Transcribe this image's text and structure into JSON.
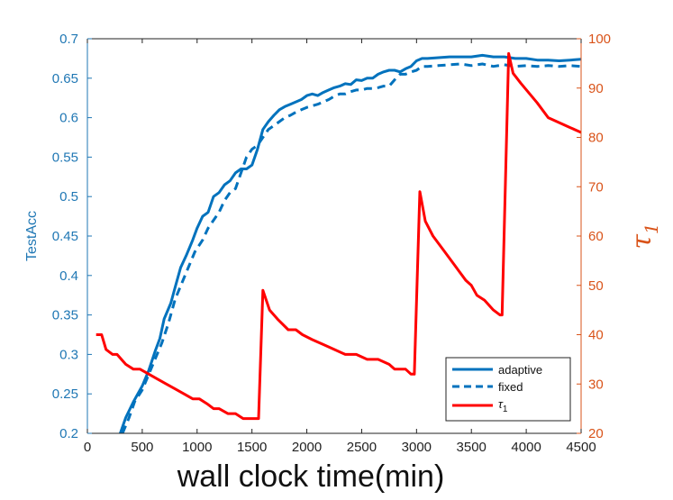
{
  "chart_data": {
    "type": "line",
    "xlabel": "wall clock time(min)",
    "ylabel": "TestAcc",
    "y2label": "τ",
    "y2label_sub": "1",
    "xlim": [
      0,
      4500
    ],
    "ylim": [
      0.2,
      0.7
    ],
    "y2lim": [
      20,
      100
    ],
    "xticks": [
      0,
      500,
      1000,
      1500,
      2000,
      2500,
      3000,
      3500,
      4000,
      4500
    ],
    "yticks": [
      "0.2",
      "0.25",
      "0.3",
      "0.35",
      "0.4",
      "0.45",
      "0.5",
      "0.55",
      "0.6",
      "0.65",
      "0.7"
    ],
    "y2ticks": [
      "20",
      "30",
      "40",
      "50",
      "60",
      "70",
      "80",
      "90",
      "100"
    ],
    "colors": {
      "left_axis": "#1f77b4",
      "right_axis": "#d95319",
      "accuracy": "#0072bd",
      "tau": "#ff0000"
    },
    "legend": {
      "position": "bottom-right",
      "entries": [
        {
          "label": "adaptive",
          "style": "solid",
          "color": "#0072bd"
        },
        {
          "label": "fixed",
          "style": "dashed",
          "color": "#0072bd"
        },
        {
          "label": "τ",
          "sub": "1",
          "style": "solid",
          "color": "#ff0000"
        }
      ]
    },
    "series": [
      {
        "name": "adaptive",
        "axis": "left",
        "style": "solid",
        "points": [
          [
            300,
            0.2
          ],
          [
            350,
            0.22
          ],
          [
            420,
            0.24
          ],
          [
            500,
            0.26
          ],
          [
            560,
            0.28
          ],
          [
            620,
            0.305
          ],
          [
            660,
            0.32
          ],
          [
            700,
            0.345
          ],
          [
            760,
            0.365
          ],
          [
            800,
            0.385
          ],
          [
            850,
            0.41
          ],
          [
            900,
            0.425
          ],
          [
            960,
            0.445
          ],
          [
            1000,
            0.46
          ],
          [
            1050,
            0.475
          ],
          [
            1100,
            0.48
          ],
          [
            1150,
            0.5
          ],
          [
            1200,
            0.505
          ],
          [
            1250,
            0.515
          ],
          [
            1300,
            0.52
          ],
          [
            1350,
            0.53
          ],
          [
            1400,
            0.535
          ],
          [
            1450,
            0.535
          ],
          [
            1500,
            0.54
          ],
          [
            1550,
            0.56
          ],
          [
            1600,
            0.585
          ],
          [
            1650,
            0.595
          ],
          [
            1700,
            0.603
          ],
          [
            1750,
            0.61
          ],
          [
            1800,
            0.614
          ],
          [
            1850,
            0.617
          ],
          [
            1900,
            0.62
          ],
          [
            1950,
            0.623
          ],
          [
            2000,
            0.628
          ],
          [
            2050,
            0.63
          ],
          [
            2100,
            0.628
          ],
          [
            2150,
            0.632
          ],
          [
            2200,
            0.635
          ],
          [
            2250,
            0.638
          ],
          [
            2300,
            0.64
          ],
          [
            2350,
            0.643
          ],
          [
            2400,
            0.642
          ],
          [
            2450,
            0.648
          ],
          [
            2500,
            0.647
          ],
          [
            2550,
            0.65
          ],
          [
            2600,
            0.65
          ],
          [
            2650,
            0.655
          ],
          [
            2700,
            0.658
          ],
          [
            2750,
            0.66
          ],
          [
            2800,
            0.66
          ],
          [
            2850,
            0.658
          ],
          [
            2900,
            0.662
          ],
          [
            2950,
            0.665
          ],
          [
            3000,
            0.672
          ],
          [
            3050,
            0.675
          ],
          [
            3100,
            0.675
          ],
          [
            3200,
            0.676
          ],
          [
            3300,
            0.677
          ],
          [
            3400,
            0.677
          ],
          [
            3500,
            0.677
          ],
          [
            3600,
            0.679
          ],
          [
            3700,
            0.677
          ],
          [
            3800,
            0.677
          ],
          [
            3900,
            0.675
          ],
          [
            4000,
            0.675
          ],
          [
            4100,
            0.673
          ],
          [
            4200,
            0.673
          ],
          [
            4300,
            0.672
          ],
          [
            4400,
            0.673
          ],
          [
            4500,
            0.674
          ]
        ]
      },
      {
        "name": "fixed",
        "axis": "left",
        "style": "dashed",
        "points": [
          [
            320,
            0.2
          ],
          [
            380,
            0.22
          ],
          [
            430,
            0.24
          ],
          [
            500,
            0.255
          ],
          [
            560,
            0.275
          ],
          [
            620,
            0.295
          ],
          [
            680,
            0.315
          ],
          [
            740,
            0.34
          ],
          [
            800,
            0.37
          ],
          [
            860,
            0.39
          ],
          [
            920,
            0.41
          ],
          [
            980,
            0.43
          ],
          [
            1050,
            0.445
          ],
          [
            1100,
            0.46
          ],
          [
            1150,
            0.47
          ],
          [
            1200,
            0.48
          ],
          [
            1250,
            0.495
          ],
          [
            1300,
            0.505
          ],
          [
            1350,
            0.51
          ],
          [
            1400,
            0.53
          ],
          [
            1450,
            0.55
          ],
          [
            1500,
            0.56
          ],
          [
            1550,
            0.565
          ],
          [
            1600,
            0.575
          ],
          [
            1650,
            0.585
          ],
          [
            1700,
            0.59
          ],
          [
            1750,
            0.595
          ],
          [
            1800,
            0.6
          ],
          [
            1850,
            0.603
          ],
          [
            1900,
            0.607
          ],
          [
            1950,
            0.61
          ],
          [
            2000,
            0.613
          ],
          [
            2050,
            0.615
          ],
          [
            2100,
            0.617
          ],
          [
            2150,
            0.62
          ],
          [
            2200,
            0.623
          ],
          [
            2250,
            0.627
          ],
          [
            2300,
            0.63
          ],
          [
            2350,
            0.63
          ],
          [
            2400,
            0.633
          ],
          [
            2450,
            0.635
          ],
          [
            2500,
            0.635
          ],
          [
            2550,
            0.637
          ],
          [
            2600,
            0.637
          ],
          [
            2650,
            0.638
          ],
          [
            2700,
            0.64
          ],
          [
            2750,
            0.64
          ],
          [
            2800,
            0.648
          ],
          [
            2850,
            0.655
          ],
          [
            2900,
            0.655
          ],
          [
            2950,
            0.658
          ],
          [
            3000,
            0.66
          ],
          [
            3050,
            0.665
          ],
          [
            3100,
            0.665
          ],
          [
            3200,
            0.666
          ],
          [
            3300,
            0.667
          ],
          [
            3400,
            0.668
          ],
          [
            3500,
            0.666
          ],
          [
            3600,
            0.668
          ],
          [
            3700,
            0.665
          ],
          [
            3800,
            0.667
          ],
          [
            3900,
            0.665
          ],
          [
            4000,
            0.666
          ],
          [
            4100,
            0.665
          ],
          [
            4200,
            0.666
          ],
          [
            4300,
            0.665
          ],
          [
            4400,
            0.666
          ],
          [
            4500,
            0.665
          ]
        ]
      },
      {
        "name": "τ",
        "sub": "1",
        "axis": "right",
        "style": "solid",
        "points": [
          [
            80,
            40
          ],
          [
            130,
            40
          ],
          [
            170,
            37
          ],
          [
            230,
            36
          ],
          [
            270,
            36
          ],
          [
            350,
            34
          ],
          [
            420,
            33
          ],
          [
            480,
            33
          ],
          [
            560,
            32
          ],
          [
            640,
            31
          ],
          [
            720,
            30
          ],
          [
            800,
            29
          ],
          [
            880,
            28
          ],
          [
            960,
            27
          ],
          [
            1020,
            27
          ],
          [
            1090,
            26
          ],
          [
            1150,
            25
          ],
          [
            1200,
            25
          ],
          [
            1280,
            24
          ],
          [
            1350,
            24
          ],
          [
            1420,
            23
          ],
          [
            1560,
            23
          ],
          [
            1600,
            49
          ],
          [
            1660,
            45
          ],
          [
            1740,
            43
          ],
          [
            1830,
            41
          ],
          [
            1900,
            41
          ],
          [
            1960,
            40
          ],
          [
            2050,
            39
          ],
          [
            2150,
            38
          ],
          [
            2250,
            37
          ],
          [
            2350,
            36
          ],
          [
            2450,
            36
          ],
          [
            2550,
            35
          ],
          [
            2650,
            35
          ],
          [
            2750,
            34
          ],
          [
            2800,
            33
          ],
          [
            2900,
            33
          ],
          [
            2950,
            32
          ],
          [
            2980,
            32
          ],
          [
            3030,
            69
          ],
          [
            3080,
            63
          ],
          [
            3150,
            60
          ],
          [
            3250,
            57
          ],
          [
            3350,
            54
          ],
          [
            3450,
            51
          ],
          [
            3500,
            50
          ],
          [
            3550,
            48
          ],
          [
            3620,
            47
          ],
          [
            3700,
            45
          ],
          [
            3760,
            44
          ],
          [
            3780,
            44
          ],
          [
            3840,
            97
          ],
          [
            3880,
            93
          ],
          [
            3950,
            91
          ],
          [
            4100,
            87
          ],
          [
            4200,
            84
          ],
          [
            4400,
            82
          ],
          [
            4500,
            81
          ]
        ]
      }
    ]
  }
}
